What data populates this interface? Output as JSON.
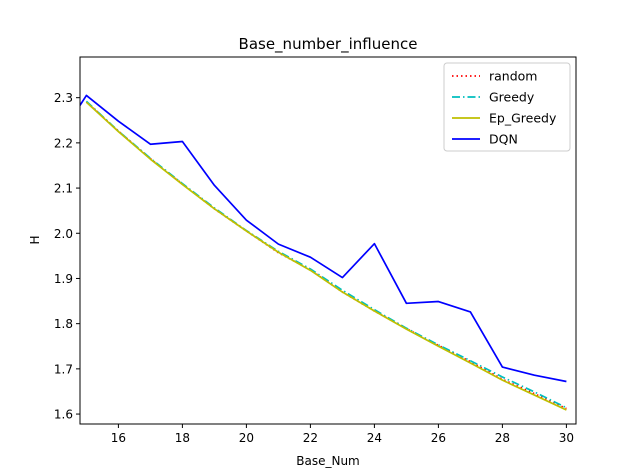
{
  "chart_data": {
    "type": "line",
    "title": "Base_number_influence",
    "xlabel": "Base_Num",
    "ylabel": "H",
    "xlim": [
      14.8,
      30.3
    ],
    "ylim": [
      1.578,
      2.39
    ],
    "xticks": [
      16,
      18,
      20,
      22,
      24,
      26,
      28,
      30
    ],
    "yticks": [
      1.6,
      1.7,
      1.8,
      1.9,
      2.0,
      2.1,
      2.2,
      2.3
    ],
    "ytick_labels": [
      "1.6",
      "1.7",
      "1.8",
      "1.9",
      "2.0",
      "2.1",
      "2.2",
      "2.3"
    ],
    "grid": false,
    "legend_position": "top-right",
    "series": [
      {
        "name": "random",
        "color": "#ff0000",
        "style": "dotted",
        "x": [
          15,
          16,
          17,
          18,
          19,
          20,
          21,
          22,
          23,
          24,
          25,
          26,
          27,
          28,
          29,
          30
        ],
        "y": [
          2.291,
          2.226,
          2.165,
          2.109,
          2.054,
          2.005,
          1.957,
          1.919,
          1.87,
          1.828,
          1.789,
          1.752,
          1.716,
          1.677,
          1.645,
          1.612
        ]
      },
      {
        "name": "Greedy",
        "color": "#00bfbf",
        "style": "dashdot",
        "x": [
          15,
          16,
          17,
          18,
          19,
          20,
          21,
          22,
          23,
          24,
          25,
          26,
          27,
          28,
          29,
          30
        ],
        "y": [
          2.292,
          2.226,
          2.166,
          2.11,
          2.056,
          2.006,
          1.96,
          1.921,
          1.874,
          1.831,
          1.79,
          1.753,
          1.718,
          1.682,
          1.649,
          1.614
        ]
      },
      {
        "name": "Ep_Greedy",
        "color": "#bfbf00",
        "style": "solid",
        "x": [
          15,
          16,
          17,
          18,
          19,
          20,
          21,
          22,
          23,
          24,
          25,
          26,
          27,
          28,
          29,
          30
        ],
        "y": [
          2.29,
          2.225,
          2.164,
          2.108,
          2.054,
          2.005,
          1.958,
          1.918,
          1.87,
          1.828,
          1.788,
          1.75,
          1.713,
          1.675,
          1.642,
          1.609
        ]
      },
      {
        "name": "DQN",
        "color": "#0000ff",
        "style": "solid",
        "x": [
          14.8,
          15,
          16,
          17,
          18,
          19,
          20,
          21,
          22,
          23,
          24,
          25,
          26,
          27,
          28,
          29,
          30
        ],
        "y": [
          2.283,
          2.305,
          2.248,
          2.197,
          2.203,
          2.106,
          2.029,
          1.976,
          1.947,
          1.902,
          1.977,
          1.845,
          1.849,
          1.826,
          1.704,
          1.686,
          1.672
        ]
      }
    ]
  }
}
